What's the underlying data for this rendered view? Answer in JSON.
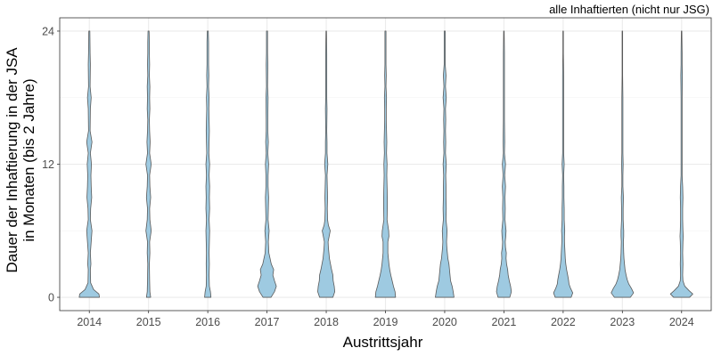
{
  "chart_data": {
    "type": "violin",
    "subtitle": "alle Inhaftierten (nicht nur JSG)",
    "xlabel": "Austrittsjahr",
    "ylabel_line1": "Dauer der Inhaftierung in der JSA",
    "ylabel_line2": "in Monaten (bis 2 Jahre)",
    "ylim": [
      -1.2,
      25.2
    ],
    "yticks": [
      0,
      12,
      24
    ],
    "grid": true,
    "fill_color": "#9ecae1",
    "stroke_color": "#595959",
    "categories": [
      "2014",
      "2015",
      "2016",
      "2017",
      "2018",
      "2019",
      "2020",
      "2021",
      "2022",
      "2023",
      "2024"
    ],
    "violins": [
      {
        "year": "2014",
        "profile": [
          [
            0,
            0.38
          ],
          [
            0.3,
            0.36
          ],
          [
            0.7,
            0.16
          ],
          [
            1.3,
            0.05
          ],
          [
            2.5,
            0.04
          ],
          [
            3,
            0.06
          ],
          [
            4,
            0.04
          ],
          [
            6,
            0.1
          ],
          [
            7,
            0.04
          ],
          [
            8,
            0.05
          ],
          [
            9,
            0.09
          ],
          [
            10,
            0.07
          ],
          [
            11,
            0.06
          ],
          [
            12,
            0.08
          ],
          [
            13,
            0.04
          ],
          [
            14,
            0.1
          ],
          [
            15,
            0.03
          ],
          [
            17,
            0.04
          ],
          [
            18,
            0.07
          ],
          [
            19,
            0.03
          ],
          [
            21,
            0.04
          ],
          [
            22,
            0.03
          ],
          [
            24,
            0.02
          ]
        ]
      },
      {
        "year": "2015",
        "profile": [
          [
            0,
            0.08
          ],
          [
            0.5,
            0.05
          ],
          [
            1.5,
            0.04
          ],
          [
            3,
            0.03
          ],
          [
            4,
            0.05
          ],
          [
            5,
            0.04
          ],
          [
            6,
            0.1
          ],
          [
            7,
            0.05
          ],
          [
            8,
            0.04
          ],
          [
            9,
            0.08
          ],
          [
            10,
            0.05
          ],
          [
            11,
            0.04
          ],
          [
            12,
            0.1
          ],
          [
            13,
            0.04
          ],
          [
            14,
            0.06
          ],
          [
            15,
            0.04
          ],
          [
            16,
            0.03
          ],
          [
            17,
            0.05
          ],
          [
            18,
            0.04
          ],
          [
            19,
            0.05
          ],
          [
            20,
            0.03
          ],
          [
            21,
            0.04
          ],
          [
            22,
            0.03
          ],
          [
            23,
            0.03
          ],
          [
            24,
            0.02
          ]
        ]
      },
      {
        "year": "2016",
        "profile": [
          [
            0,
            0.12
          ],
          [
            0.5,
            0.1
          ],
          [
            1,
            0.06
          ],
          [
            2,
            0.05
          ],
          [
            3,
            0.06
          ],
          [
            4,
            0.05
          ],
          [
            5,
            0.06
          ],
          [
            6,
            0.07
          ],
          [
            7,
            0.05
          ],
          [
            8,
            0.07
          ],
          [
            9,
            0.06
          ],
          [
            10,
            0.07
          ],
          [
            11,
            0.05
          ],
          [
            12,
            0.07
          ],
          [
            13,
            0.04
          ],
          [
            14,
            0.05
          ],
          [
            15,
            0.06
          ],
          [
            16,
            0.05
          ],
          [
            17,
            0.04
          ],
          [
            18,
            0.05
          ],
          [
            19,
            0.03
          ],
          [
            20,
            0.04
          ],
          [
            21,
            0.03
          ],
          [
            22,
            0.03
          ],
          [
            23,
            0.03
          ],
          [
            24,
            0.02
          ]
        ]
      },
      {
        "year": "2017",
        "profile": [
          [
            0,
            0.15
          ],
          [
            0.5,
            0.28
          ],
          [
            1,
            0.35
          ],
          [
            1.5,
            0.28
          ],
          [
            2,
            0.22
          ],
          [
            2.5,
            0.25
          ],
          [
            3,
            0.16
          ],
          [
            4,
            0.07
          ],
          [
            5,
            0.05
          ],
          [
            6,
            0.08
          ],
          [
            7,
            0.04
          ],
          [
            8,
            0.05
          ],
          [
            9,
            0.06
          ],
          [
            10,
            0.04
          ],
          [
            11,
            0.04
          ],
          [
            12,
            0.06
          ],
          [
            13,
            0.03
          ],
          [
            14,
            0.05
          ],
          [
            15,
            0.03
          ],
          [
            16,
            0.03
          ],
          [
            18,
            0.04
          ],
          [
            19,
            0.02
          ],
          [
            21,
            0.03
          ],
          [
            22,
            0.02
          ],
          [
            24,
            0.02
          ]
        ]
      },
      {
        "year": "2018",
        "profile": [
          [
            0,
            0.25
          ],
          [
            0.5,
            0.32
          ],
          [
            1,
            0.3
          ],
          [
            1.5,
            0.26
          ],
          [
            2,
            0.25
          ],
          [
            2.5,
            0.2
          ],
          [
            3,
            0.16
          ],
          [
            3.5,
            0.12
          ],
          [
            4,
            0.1
          ],
          [
            4.5,
            0.08
          ],
          [
            5,
            0.07
          ],
          [
            5.5,
            0.11
          ],
          [
            6,
            0.15
          ],
          [
            6.5,
            0.08
          ],
          [
            7,
            0.05
          ],
          [
            8,
            0.04
          ],
          [
            9,
            0.05
          ],
          [
            10,
            0.04
          ],
          [
            11,
            0.03
          ],
          [
            12,
            0.06
          ],
          [
            13,
            0.03
          ],
          [
            14,
            0.03
          ],
          [
            15,
            0.02
          ],
          [
            17,
            0.03
          ],
          [
            18,
            0.02
          ],
          [
            20,
            0.02
          ],
          [
            22,
            0.02
          ],
          [
            24,
            0.01
          ]
        ]
      },
      {
        "year": "2019",
        "profile": [
          [
            0,
            0.38
          ],
          [
            0.5,
            0.36
          ],
          [
            1,
            0.3
          ],
          [
            1.5,
            0.25
          ],
          [
            2,
            0.2
          ],
          [
            2.5,
            0.16
          ],
          [
            3,
            0.13
          ],
          [
            4,
            0.09
          ],
          [
            5,
            0.09
          ],
          [
            5.5,
            0.13
          ],
          [
            6,
            0.12
          ],
          [
            7,
            0.06
          ],
          [
            8,
            0.07
          ],
          [
            9,
            0.07
          ],
          [
            10,
            0.06
          ],
          [
            11,
            0.05
          ],
          [
            12,
            0.06
          ],
          [
            13,
            0.04
          ],
          [
            14,
            0.05
          ],
          [
            15,
            0.04
          ],
          [
            16,
            0.03
          ],
          [
            17,
            0.03
          ],
          [
            18,
            0.04
          ],
          [
            19,
            0.02
          ],
          [
            20,
            0.03
          ],
          [
            21,
            0.02
          ],
          [
            22,
            0.02
          ],
          [
            24,
            0.02
          ]
        ]
      },
      {
        "year": "2020",
        "profile": [
          [
            0,
            0.35
          ],
          [
            0.5,
            0.32
          ],
          [
            1,
            0.28
          ],
          [
            1.5,
            0.22
          ],
          [
            2,
            0.2
          ],
          [
            2.5,
            0.18
          ],
          [
            3,
            0.16
          ],
          [
            3.5,
            0.12
          ],
          [
            4,
            0.1
          ],
          [
            4.5,
            0.08
          ],
          [
            5,
            0.07
          ],
          [
            6,
            0.09
          ],
          [
            7,
            0.05
          ],
          [
            8,
            0.06
          ],
          [
            9,
            0.05
          ],
          [
            10,
            0.05
          ],
          [
            11,
            0.04
          ],
          [
            12,
            0.06
          ],
          [
            13,
            0.03
          ],
          [
            14,
            0.04
          ],
          [
            15,
            0.03
          ],
          [
            16,
            0.04
          ],
          [
            17,
            0.03
          ],
          [
            18,
            0.06
          ],
          [
            19,
            0.03
          ],
          [
            20,
            0.05
          ],
          [
            21,
            0.02
          ],
          [
            22,
            0.02
          ],
          [
            23,
            0.02
          ],
          [
            24,
            0.02
          ]
        ]
      },
      {
        "year": "2021",
        "profile": [
          [
            0,
            0.22
          ],
          [
            0.5,
            0.28
          ],
          [
            1,
            0.25
          ],
          [
            1.5,
            0.2
          ],
          [
            2,
            0.16
          ],
          [
            2.5,
            0.14
          ],
          [
            3,
            0.1
          ],
          [
            3.5,
            0.08
          ],
          [
            4,
            0.09
          ],
          [
            4.5,
            0.06
          ],
          [
            5,
            0.05
          ],
          [
            5.5,
            0.07
          ],
          [
            6,
            0.08
          ],
          [
            7,
            0.04
          ],
          [
            8,
            0.05
          ],
          [
            9,
            0.04
          ],
          [
            10,
            0.06
          ],
          [
            11,
            0.03
          ],
          [
            12,
            0.06
          ],
          [
            13,
            0.02
          ],
          [
            14,
            0.03
          ],
          [
            16,
            0.02
          ],
          [
            18,
            0.02
          ],
          [
            20,
            0.02
          ],
          [
            22,
            0.02
          ],
          [
            24,
            0.01
          ]
        ]
      },
      {
        "year": "2022",
        "profile": [
          [
            0,
            0.3
          ],
          [
            0.4,
            0.36
          ],
          [
            0.8,
            0.28
          ],
          [
            1.2,
            0.22
          ],
          [
            1.6,
            0.2
          ],
          [
            2,
            0.17
          ],
          [
            2.5,
            0.13
          ],
          [
            3,
            0.1
          ],
          [
            3.5,
            0.08
          ],
          [
            4,
            0.07
          ],
          [
            5,
            0.05
          ],
          [
            5.5,
            0.05
          ],
          [
            6,
            0.06
          ],
          [
            7,
            0.04
          ],
          [
            8,
            0.04
          ],
          [
            9,
            0.03
          ],
          [
            10,
            0.03
          ],
          [
            11,
            0.02
          ],
          [
            12,
            0.04
          ],
          [
            13,
            0.02
          ],
          [
            14,
            0.02
          ],
          [
            15,
            0.02
          ],
          [
            16,
            0.02
          ],
          [
            18,
            0.02
          ],
          [
            20,
            0.02
          ],
          [
            22,
            0.01
          ],
          [
            24,
            0.01
          ]
        ]
      },
      {
        "year": "2023",
        "profile": [
          [
            0,
            0.3
          ],
          [
            0.4,
            0.42
          ],
          [
            0.8,
            0.34
          ],
          [
            1.2,
            0.24
          ],
          [
            1.6,
            0.18
          ],
          [
            2,
            0.14
          ],
          [
            2.5,
            0.1
          ],
          [
            3,
            0.08
          ],
          [
            3.5,
            0.06
          ],
          [
            4,
            0.05
          ],
          [
            5,
            0.04
          ],
          [
            5.5,
            0.05
          ],
          [
            6,
            0.05
          ],
          [
            7,
            0.03
          ],
          [
            8,
            0.03
          ],
          [
            9,
            0.04
          ],
          [
            10,
            0.02
          ],
          [
            11,
            0.02
          ],
          [
            12,
            0.03
          ],
          [
            13,
            0.02
          ],
          [
            14,
            0.02
          ],
          [
            16,
            0.02
          ],
          [
            18,
            0.02
          ],
          [
            20,
            0.01
          ],
          [
            22,
            0.01
          ],
          [
            24,
            0.01
          ]
        ]
      },
      {
        "year": "2024",
        "profile": [
          [
            0,
            0.3
          ],
          [
            0.3,
            0.42
          ],
          [
            0.6,
            0.28
          ],
          [
            1,
            0.12
          ],
          [
            1.5,
            0.05
          ],
          [
            2,
            0.04
          ],
          [
            3,
            0.05
          ],
          [
            4,
            0.04
          ],
          [
            5,
            0.05
          ],
          [
            5.5,
            0.06
          ],
          [
            6,
            0.05
          ],
          [
            7,
            0.04
          ],
          [
            8,
            0.04
          ],
          [
            9,
            0.05
          ],
          [
            10,
            0.04
          ],
          [
            11,
            0.02
          ],
          [
            12,
            0.02
          ],
          [
            14,
            0.02
          ],
          [
            16,
            0.02
          ],
          [
            18,
            0.02
          ],
          [
            20,
            0.03
          ],
          [
            21,
            0.02
          ],
          [
            22,
            0.02
          ],
          [
            24,
            0.01
          ]
        ]
      }
    ]
  }
}
